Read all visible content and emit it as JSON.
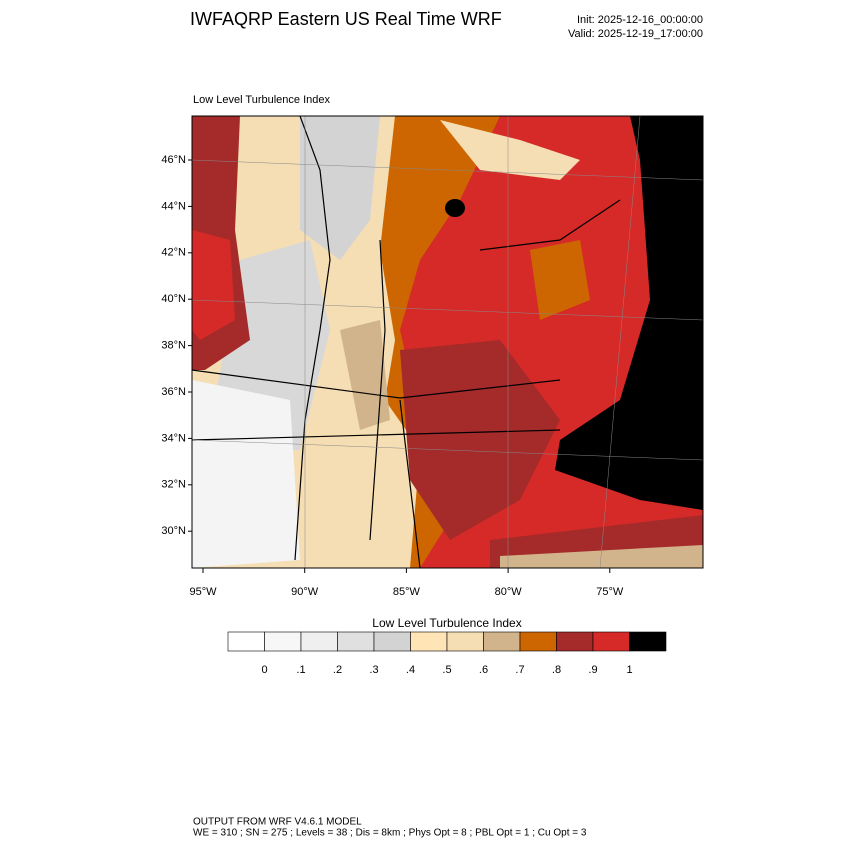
{
  "header": {
    "title": "IWFAQRP Eastern US Real Time WRF",
    "init": "Init: 2025-12-16_00:00:00",
    "valid": "Valid: 2025-12-19_17:00:00"
  },
  "map": {
    "subtitle": "Low Level Turbulence Index",
    "lat_labels": [
      "46°N",
      "44°N",
      "42°N",
      "40°N",
      "38°N",
      "36°N",
      "34°N",
      "32°N",
      "30°N"
    ],
    "lon_labels": [
      "95°W",
      "90°W",
      "85°W",
      "80°W",
      "75°W"
    ]
  },
  "colorbar": {
    "title": "Low Level Turbulence Index",
    "labels": [
      "0",
      ".1",
      ".2",
      ".3",
      ".4",
      ".5",
      ".6",
      ".7",
      ".8",
      ".9",
      "1"
    ],
    "colors": [
      "#ffffff",
      "#f7f7f7",
      "#efefef",
      "#e0e0e0",
      "#d3d3d3",
      "#ffe4b5",
      "#f5deb3",
      "#d2b48c",
      "#cd6600",
      "#a52a2a",
      "#d62a28",
      "#000000"
    ]
  },
  "footer": {
    "line1": "OUTPUT FROM WRF V4.6.1 MODEL",
    "line2": "WE = 310 ; SN = 275 ; Levels = 38 ; Dis = 8km ; Phys Opt = 8 ; PBL Opt = 1 ; Cu Opt = 3"
  }
}
